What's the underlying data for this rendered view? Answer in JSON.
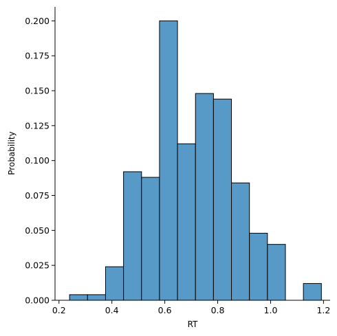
{
  "chart_data": {
    "type": "bar",
    "title": "",
    "xlabel": "RT",
    "ylabel": "Probability",
    "xlim": [
      0.185,
      1.225
    ],
    "ylim": [
      0,
      0.21
    ],
    "grid": false,
    "bar_color": "#5799c7",
    "bin_edges": [
      0.24,
      0.308,
      0.376,
      0.444,
      0.512,
      0.58,
      0.648,
      0.716,
      0.784,
      0.852,
      0.92,
      0.988,
      1.056,
      1.124,
      1.192
    ],
    "values": [
      0.004,
      0.004,
      0.024,
      0.092,
      0.088,
      0.2,
      0.112,
      0.148,
      0.144,
      0.084,
      0.048,
      0.04,
      0.0,
      0.012
    ],
    "x_ticks": [
      {
        "value": 0.2,
        "label": "0.2"
      },
      {
        "value": 0.4,
        "label": "0.4"
      },
      {
        "value": 0.6,
        "label": "0.6"
      },
      {
        "value": 0.8,
        "label": "0.8"
      },
      {
        "value": 1.0,
        "label": "1.0"
      },
      {
        "value": 1.2,
        "label": "1.2"
      }
    ],
    "y_ticks": [
      {
        "value": 0.0,
        "label": "0.000"
      },
      {
        "value": 0.025,
        "label": "0.025"
      },
      {
        "value": 0.05,
        "label": "0.050"
      },
      {
        "value": 0.075,
        "label": "0.075"
      },
      {
        "value": 0.1,
        "label": "0.100"
      },
      {
        "value": 0.125,
        "label": "0.125"
      },
      {
        "value": 0.15,
        "label": "0.150"
      },
      {
        "value": 0.175,
        "label": "0.175"
      },
      {
        "value": 0.2,
        "label": "0.200"
      }
    ]
  }
}
